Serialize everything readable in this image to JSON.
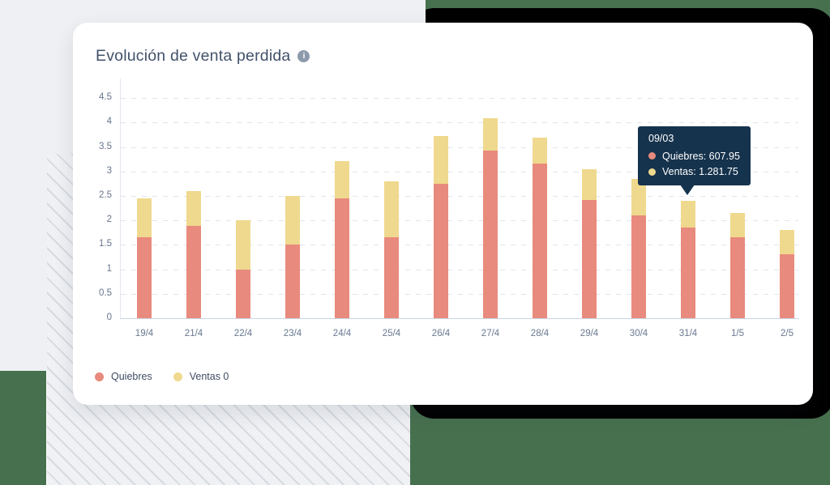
{
  "card": {
    "title": "Evolución de venta perdida",
    "info_icon_glyph": "i"
  },
  "legend": [
    {
      "label": "Quiebres",
      "color": "#e88a7d"
    },
    {
      "label": "Ventas 0",
      "color": "#efd98e"
    }
  ],
  "tooltip": {
    "date": "09/03",
    "rows": [
      {
        "text": "Quiebres: 607.95",
        "color": "#e88a7d"
      },
      {
        "text": "Ventas: 1.281.75",
        "color": "#efd98e"
      }
    ]
  },
  "colors": {
    "bar_quiebres": "#e88a7d",
    "bar_ventas0": "#efd98e",
    "tooltip_bg": "#16334d",
    "background_green": "#47704f",
    "background_gray": "#eef0f3",
    "card_bg": "#ffffff",
    "title_text": "#42526b",
    "axis_text": "#66758c"
  },
  "chart_data": {
    "type": "bar",
    "stacked": true,
    "title": "Evolución de venta perdida",
    "xlabel": "",
    "ylabel": "",
    "ylim": [
      0,
      4.5
    ],
    "grid": "horizontal-dashed",
    "legend_position": "bottom-left",
    "categories": [
      "19/4",
      "21/4",
      "22/4",
      "23/4",
      "24/4",
      "25/4",
      "26/4",
      "27/4",
      "28/4",
      "29/4",
      "30/4",
      "31/4",
      "1/5",
      "2/5"
    ],
    "series": [
      {
        "name": "Quiebres",
        "color": "#e88a7d",
        "values": [
          1.65,
          1.88,
          1.0,
          1.5,
          2.45,
          1.65,
          2.75,
          3.42,
          3.16,
          2.42,
          2.1,
          1.85,
          1.65,
          1.3
        ]
      },
      {
        "name": "Ventas 0",
        "color": "#efd98e",
        "values": [
          0.8,
          0.72,
          1.0,
          1.0,
          0.77,
          1.15,
          0.97,
          0.67,
          0.54,
          0.62,
          0.75,
          0.55,
          0.5,
          0.5
        ]
      }
    ],
    "ytick_labels": [
      "0",
      "0.5",
      "1",
      "1.5",
      "2",
      "2.5",
      "3",
      "3.5",
      "4",
      "4.5"
    ]
  }
}
